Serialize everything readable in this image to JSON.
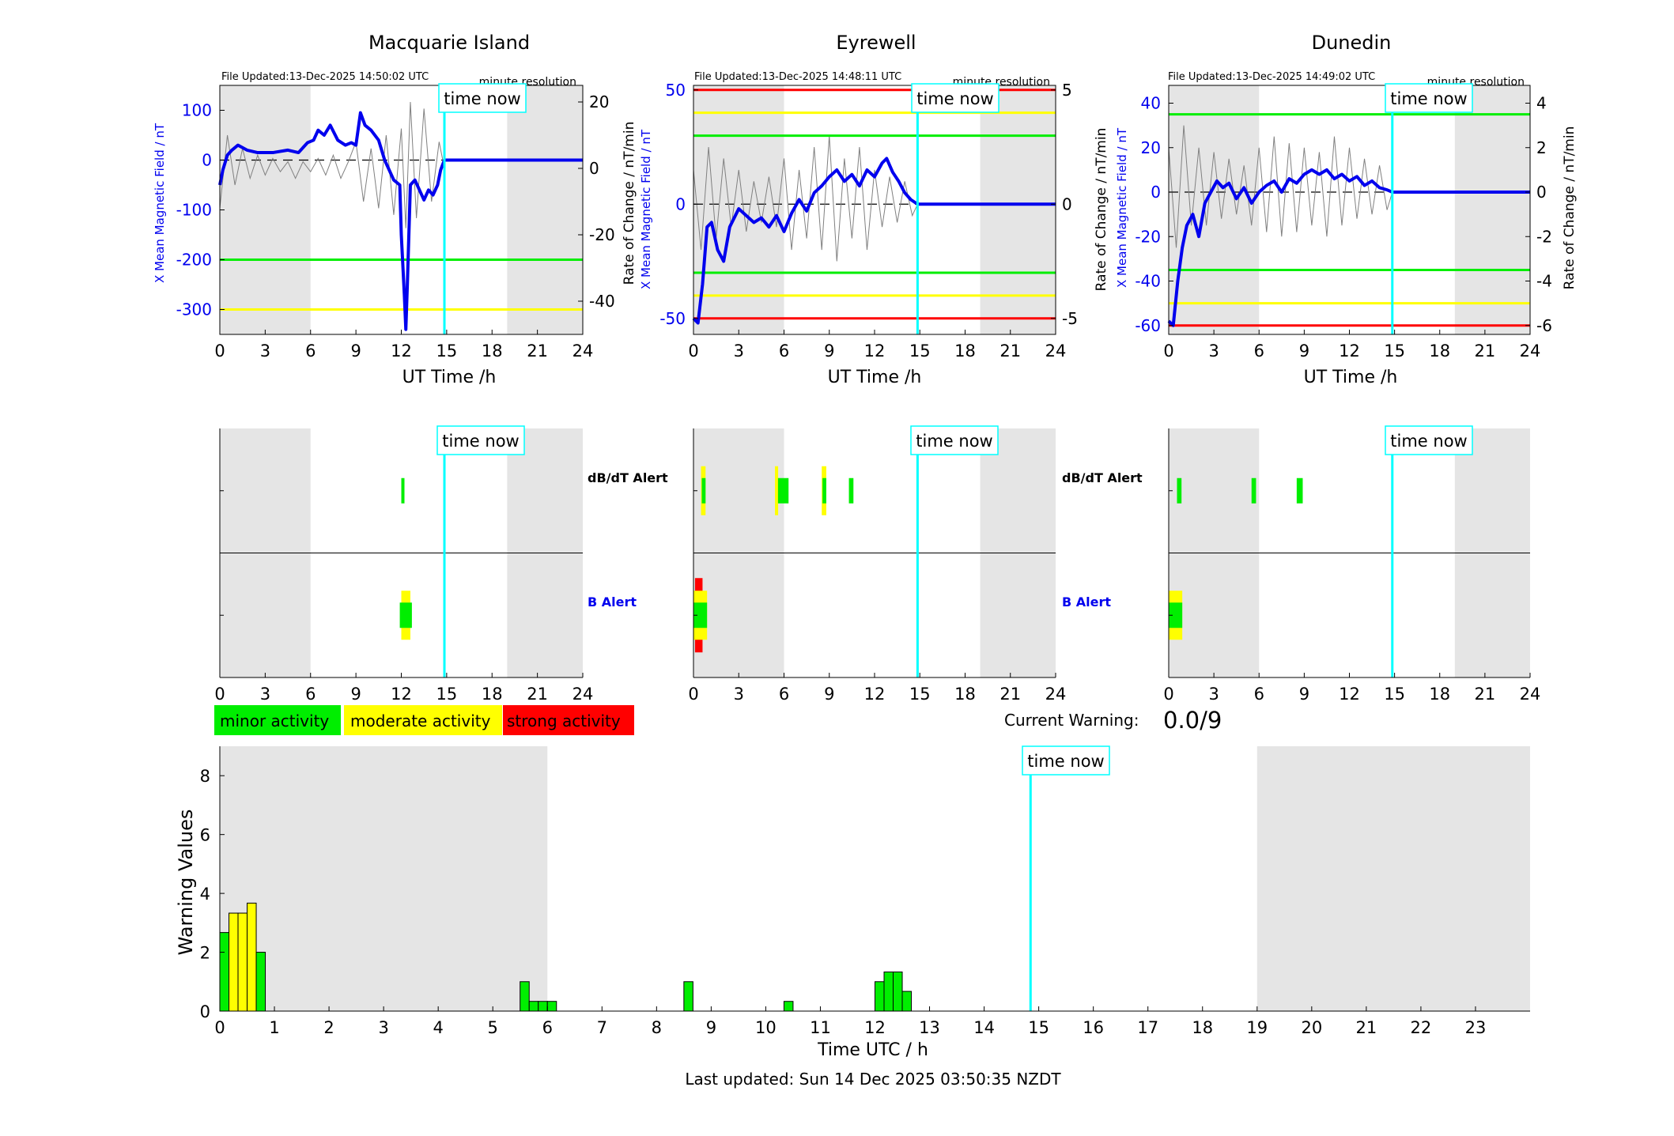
{
  "colors": {
    "minor": "#00ee00",
    "moderate": "#ffff00",
    "strong": "#ff0000",
    "now_line": "#00ffff",
    "field_line": "#0000ee",
    "shade": "#e5e5e5",
    "threshold_green": "#00ee00",
    "threshold_yellow": "#ffff00",
    "threshold_red": "#ff0000"
  },
  "common": {
    "time_now_label": "time now",
    "resolution_label": "minute resolution",
    "x_label": "UT Time /h",
    "y_left_label": "X Mean Magnetic Field / nT",
    "y_right_label": "Rate of Change / nT/min",
    "x_ticks": [
      0,
      3,
      6,
      9,
      12,
      15,
      18,
      21,
      24
    ],
    "now_hour": 14.85,
    "dbdt_alert_label": "dB/dT Alert",
    "b_alert_label": "B Alert"
  },
  "chart_data": [
    {
      "type": "line",
      "station": "Macquarie Island",
      "file_updated": "File Updated:13-Dec-2025 14:50:02 UTC",
      "xlim": [
        0,
        24
      ],
      "ylim": [
        -350,
        150
      ],
      "y_ticks": [
        100,
        0,
        -100,
        -200,
        -300
      ],
      "y2lim": [
        -50,
        25
      ],
      "y2_ticks": [
        20,
        0,
        -20,
        -40
      ],
      "shaded_hours": [
        [
          0,
          6
        ],
        [
          19,
          24
        ]
      ],
      "thresholds": [
        {
          "value": -200,
          "level": "minor"
        },
        {
          "value": -300,
          "level": "moderate"
        }
      ],
      "series": [
        {
          "role": "field",
          "x": [
            0,
            0.2,
            0.5,
            0.8,
            1.2,
            1.8,
            2.5,
            3.5,
            4.5,
            5.2,
            5.8,
            6.2,
            6.5,
            6.9,
            7.3,
            7.8,
            8.3,
            8.7,
            9.0,
            9.3,
            9.6,
            10.0,
            10.5,
            10.9,
            11.2,
            11.5,
            11.9,
            12.0,
            12.2,
            12.3,
            12.4,
            12.6,
            12.9,
            13.2,
            13.5,
            13.8,
            14.1,
            14.4,
            14.6,
            14.85,
            24
          ],
          "y": [
            -50,
            -20,
            10,
            20,
            30,
            20,
            15,
            15,
            20,
            15,
            35,
            40,
            60,
            50,
            70,
            40,
            30,
            35,
            30,
            95,
            70,
            60,
            40,
            0,
            -20,
            -40,
            -50,
            -150,
            -270,
            -340,
            -250,
            -50,
            -40,
            -60,
            -80,
            -60,
            -70,
            -50,
            -20,
            0,
            0
          ]
        },
        {
          "role": "rate",
          "x": [
            0,
            0.5,
            1,
            1.5,
            2,
            2.5,
            3,
            3.5,
            4,
            4.5,
            5,
            5.5,
            6,
            6.5,
            7,
            7.5,
            8,
            8.5,
            9,
            9.5,
            10,
            10.5,
            11,
            11.5,
            12,
            12.3,
            12.6,
            13,
            13.5,
            14,
            14.5,
            14.85
          ],
          "y": [
            -12,
            10,
            -5,
            6,
            -3,
            4,
            -2,
            3,
            -1,
            2,
            -3,
            2,
            -1,
            3,
            -2,
            4,
            -3,
            2,
            8,
            -10,
            6,
            -12,
            10,
            -14,
            12,
            -18,
            20,
            -15,
            18,
            -10,
            8,
            0
          ]
        }
      ]
    },
    {
      "type": "line",
      "station": "Eyrewell",
      "file_updated": "File Updated:13-Dec-2025 14:48:11 UTC",
      "xlim": [
        0,
        24
      ],
      "ylim": [
        -57,
        52
      ],
      "y_ticks": [
        50,
        0,
        -50
      ],
      "y2lim": [
        -5.7,
        5.2
      ],
      "y2_ticks": [
        5,
        0,
        -5
      ],
      "shaded_hours": [
        [
          0,
          6
        ],
        [
          19,
          24
        ]
      ],
      "thresholds": [
        {
          "value": 50,
          "level": "strong"
        },
        {
          "value": 40,
          "level": "moderate"
        },
        {
          "value": 30,
          "level": "minor"
        },
        {
          "value": -30,
          "level": "minor"
        },
        {
          "value": -40,
          "level": "moderate"
        },
        {
          "value": -50,
          "level": "strong"
        }
      ],
      "series": [
        {
          "role": "field",
          "x": [
            0,
            0.3,
            0.6,
            0.9,
            1.2,
            1.6,
            2.0,
            2.4,
            3.0,
            3.5,
            4.0,
            4.5,
            5.0,
            5.5,
            6.0,
            6.5,
            7.0,
            7.5,
            8.0,
            8.5,
            9.0,
            9.5,
            10.0,
            10.5,
            11.0,
            11.5,
            12.0,
            12.5,
            12.8,
            13.2,
            13.6,
            14.0,
            14.4,
            14.85,
            24
          ],
          "y": [
            -50,
            -52,
            -35,
            -10,
            -8,
            -20,
            -25,
            -10,
            -2,
            -5,
            -8,
            -6,
            -10,
            -5,
            -12,
            -4,
            2,
            -3,
            5,
            8,
            12,
            15,
            10,
            13,
            8,
            15,
            12,
            18,
            20,
            14,
            10,
            5,
            2,
            0,
            0
          ]
        },
        {
          "role": "rate",
          "x": [
            0,
            0.5,
            1,
            1.5,
            2,
            2.5,
            3,
            3.5,
            4,
            4.5,
            5,
            5.5,
            6,
            6.5,
            7,
            7.5,
            8,
            8.5,
            9,
            9.5,
            10,
            10.5,
            11,
            11.5,
            12,
            12.5,
            13,
            13.5,
            14,
            14.5,
            14.85
          ],
          "y": [
            1.5,
            -2,
            2.5,
            -1.5,
            2,
            -1,
            1.5,
            -1.2,
            1,
            -0.8,
            1.2,
            -1,
            2,
            -2,
            1.5,
            -1.5,
            2.5,
            -2,
            3,
            -2.5,
            2,
            -1.5,
            2.5,
            -2,
            1.5,
            -1,
            1.2,
            -0.8,
            1,
            -0.5,
            0
          ]
        }
      ]
    },
    {
      "type": "line",
      "station": "Dunedin",
      "file_updated": "File Updated:13-Dec-2025 14:49:02 UTC",
      "xlim": [
        0,
        24
      ],
      "ylim": [
        -64,
        48
      ],
      "y_ticks": [
        40,
        20,
        0,
        -20,
        -40,
        -60
      ],
      "y2lim": [
        -6.4,
        4.8
      ],
      "y2_ticks": [
        4,
        2,
        0,
        -2,
        -4,
        -6
      ],
      "shaded_hours": [
        [
          0,
          6
        ],
        [
          19,
          24
        ]
      ],
      "thresholds": [
        {
          "value": 35,
          "level": "minor"
        },
        {
          "value": -35,
          "level": "minor"
        },
        {
          "value": -50,
          "level": "moderate"
        },
        {
          "value": -60,
          "level": "strong"
        }
      ],
      "series": [
        {
          "role": "field",
          "x": [
            0,
            0.3,
            0.6,
            0.9,
            1.2,
            1.6,
            2.0,
            2.4,
            2.8,
            3.2,
            3.6,
            4.0,
            4.5,
            5.0,
            5.5,
            6.0,
            6.5,
            7.0,
            7.5,
            8.0,
            8.5,
            9.0,
            9.5,
            10.0,
            10.5,
            11.0,
            11.5,
            12.0,
            12.5,
            13.0,
            13.5,
            14.0,
            14.5,
            14.85,
            24
          ],
          "y": [
            -58,
            -60,
            -40,
            -25,
            -15,
            -10,
            -20,
            -5,
            0,
            5,
            2,
            4,
            -3,
            2,
            -5,
            0,
            3,
            5,
            0,
            6,
            4,
            8,
            10,
            8,
            10,
            6,
            8,
            5,
            7,
            3,
            5,
            2,
            1,
            0,
            0
          ]
        },
        {
          "role": "rate",
          "x": [
            0,
            0.5,
            1,
            1.5,
            2,
            2.5,
            3,
            3.5,
            4,
            4.5,
            5,
            5.5,
            6,
            6.5,
            7,
            7.5,
            8,
            8.5,
            9,
            9.5,
            10,
            10.5,
            11,
            11.5,
            12,
            12.5,
            13,
            13.5,
            14,
            14.5,
            14.85
          ],
          "y": [
            2,
            -2.5,
            3,
            -1.5,
            2,
            -1.5,
            1.8,
            -1.2,
            1.5,
            -1,
            1.2,
            -1.5,
            2,
            -1.8,
            2.5,
            -2,
            2.2,
            -1.8,
            2,
            -1.5,
            1.8,
            -2,
            2.5,
            -1.5,
            2,
            -1.2,
            1.5,
            -1,
            1.2,
            -0.8,
            0
          ]
        }
      ]
    },
    {
      "type": "bar",
      "panel": "alerts",
      "station": "Macquarie Island",
      "dbdt": [
        {
          "start": 12.0,
          "end": 12.2,
          "level": "minor"
        }
      ],
      "b": [
        {
          "start": 12.0,
          "end": 12.6,
          "level": "moderate"
        },
        {
          "start": 11.9,
          "end": 12.7,
          "level": "minor"
        }
      ]
    },
    {
      "type": "bar",
      "panel": "alerts",
      "station": "Eyrewell",
      "dbdt": [
        {
          "start": 0.5,
          "end": 0.8,
          "level": "moderate"
        },
        {
          "start": 0.55,
          "end": 0.8,
          "level": "minor"
        },
        {
          "start": 5.4,
          "end": 5.6,
          "level": "moderate"
        },
        {
          "start": 5.6,
          "end": 6.3,
          "level": "minor"
        },
        {
          "start": 8.5,
          "end": 8.8,
          "level": "moderate"
        },
        {
          "start": 8.55,
          "end": 8.8,
          "level": "minor"
        },
        {
          "start": 10.3,
          "end": 10.6,
          "level": "minor"
        }
      ],
      "b": [
        {
          "start": 0.1,
          "end": 0.6,
          "level": "strong"
        },
        {
          "start": 0.0,
          "end": 0.9,
          "level": "moderate"
        },
        {
          "start": 0.0,
          "end": 0.9,
          "level": "minor"
        }
      ]
    },
    {
      "type": "bar",
      "panel": "alerts",
      "station": "Dunedin",
      "dbdt": [
        {
          "start": 0.55,
          "end": 0.85,
          "level": "minor"
        },
        {
          "start": 5.5,
          "end": 5.8,
          "level": "minor"
        },
        {
          "start": 8.5,
          "end": 8.9,
          "level": "minor"
        }
      ],
      "b": [
        {
          "start": 0.0,
          "end": 0.9,
          "level": "moderate"
        },
        {
          "start": 0.0,
          "end": 0.9,
          "level": "minor"
        }
      ]
    },
    {
      "type": "bar",
      "panel": "warnings",
      "xlabel": "Time UTC / h",
      "ylabel": "Warning Values",
      "xlim": [
        0,
        24
      ],
      "ylim": [
        0,
        9
      ],
      "x_ticks": [
        0,
        1,
        2,
        3,
        4,
        5,
        6,
        7,
        8,
        9,
        10,
        11,
        12,
        13,
        14,
        15,
        16,
        17,
        18,
        19,
        20,
        21,
        22,
        23
      ],
      "y_ticks": [
        0,
        2,
        4,
        6,
        8
      ],
      "shaded_hours": [
        [
          0,
          6
        ],
        [
          19,
          24
        ]
      ],
      "bar_width_h": 0.1667,
      "bars": [
        {
          "start": 0.0,
          "value": 2.67,
          "level": "minor"
        },
        {
          "start": 0.1667,
          "value": 3.33,
          "level": "moderate"
        },
        {
          "start": 0.3333,
          "value": 3.33,
          "level": "moderate"
        },
        {
          "start": 0.5,
          "value": 3.67,
          "level": "moderate"
        },
        {
          "start": 0.6667,
          "value": 2.0,
          "level": "minor"
        },
        {
          "start": 5.5,
          "value": 1.0,
          "level": "minor"
        },
        {
          "start": 5.6667,
          "value": 0.33,
          "level": "minor"
        },
        {
          "start": 5.8333,
          "value": 0.33,
          "level": "minor"
        },
        {
          "start": 6.0,
          "value": 0.33,
          "level": "minor"
        },
        {
          "start": 8.5,
          "value": 1.0,
          "level": "minor"
        },
        {
          "start": 10.3333,
          "value": 0.33,
          "level": "minor"
        },
        {
          "start": 12.0,
          "value": 1.0,
          "level": "minor"
        },
        {
          "start": 12.1667,
          "value": 1.33,
          "level": "minor"
        },
        {
          "start": 12.3333,
          "value": 1.33,
          "level": "minor"
        },
        {
          "start": 12.5,
          "value": 0.67,
          "level": "minor"
        }
      ]
    }
  ],
  "legend": {
    "minor": "minor activity",
    "moderate": "moderate activity",
    "strong": "strong activity"
  },
  "current_warning": {
    "label": "Current Warning:",
    "value": "0.0/9"
  },
  "footer": {
    "last_updated": "Last updated: Sun 14 Dec 2025 03:50:35 NZDT"
  }
}
